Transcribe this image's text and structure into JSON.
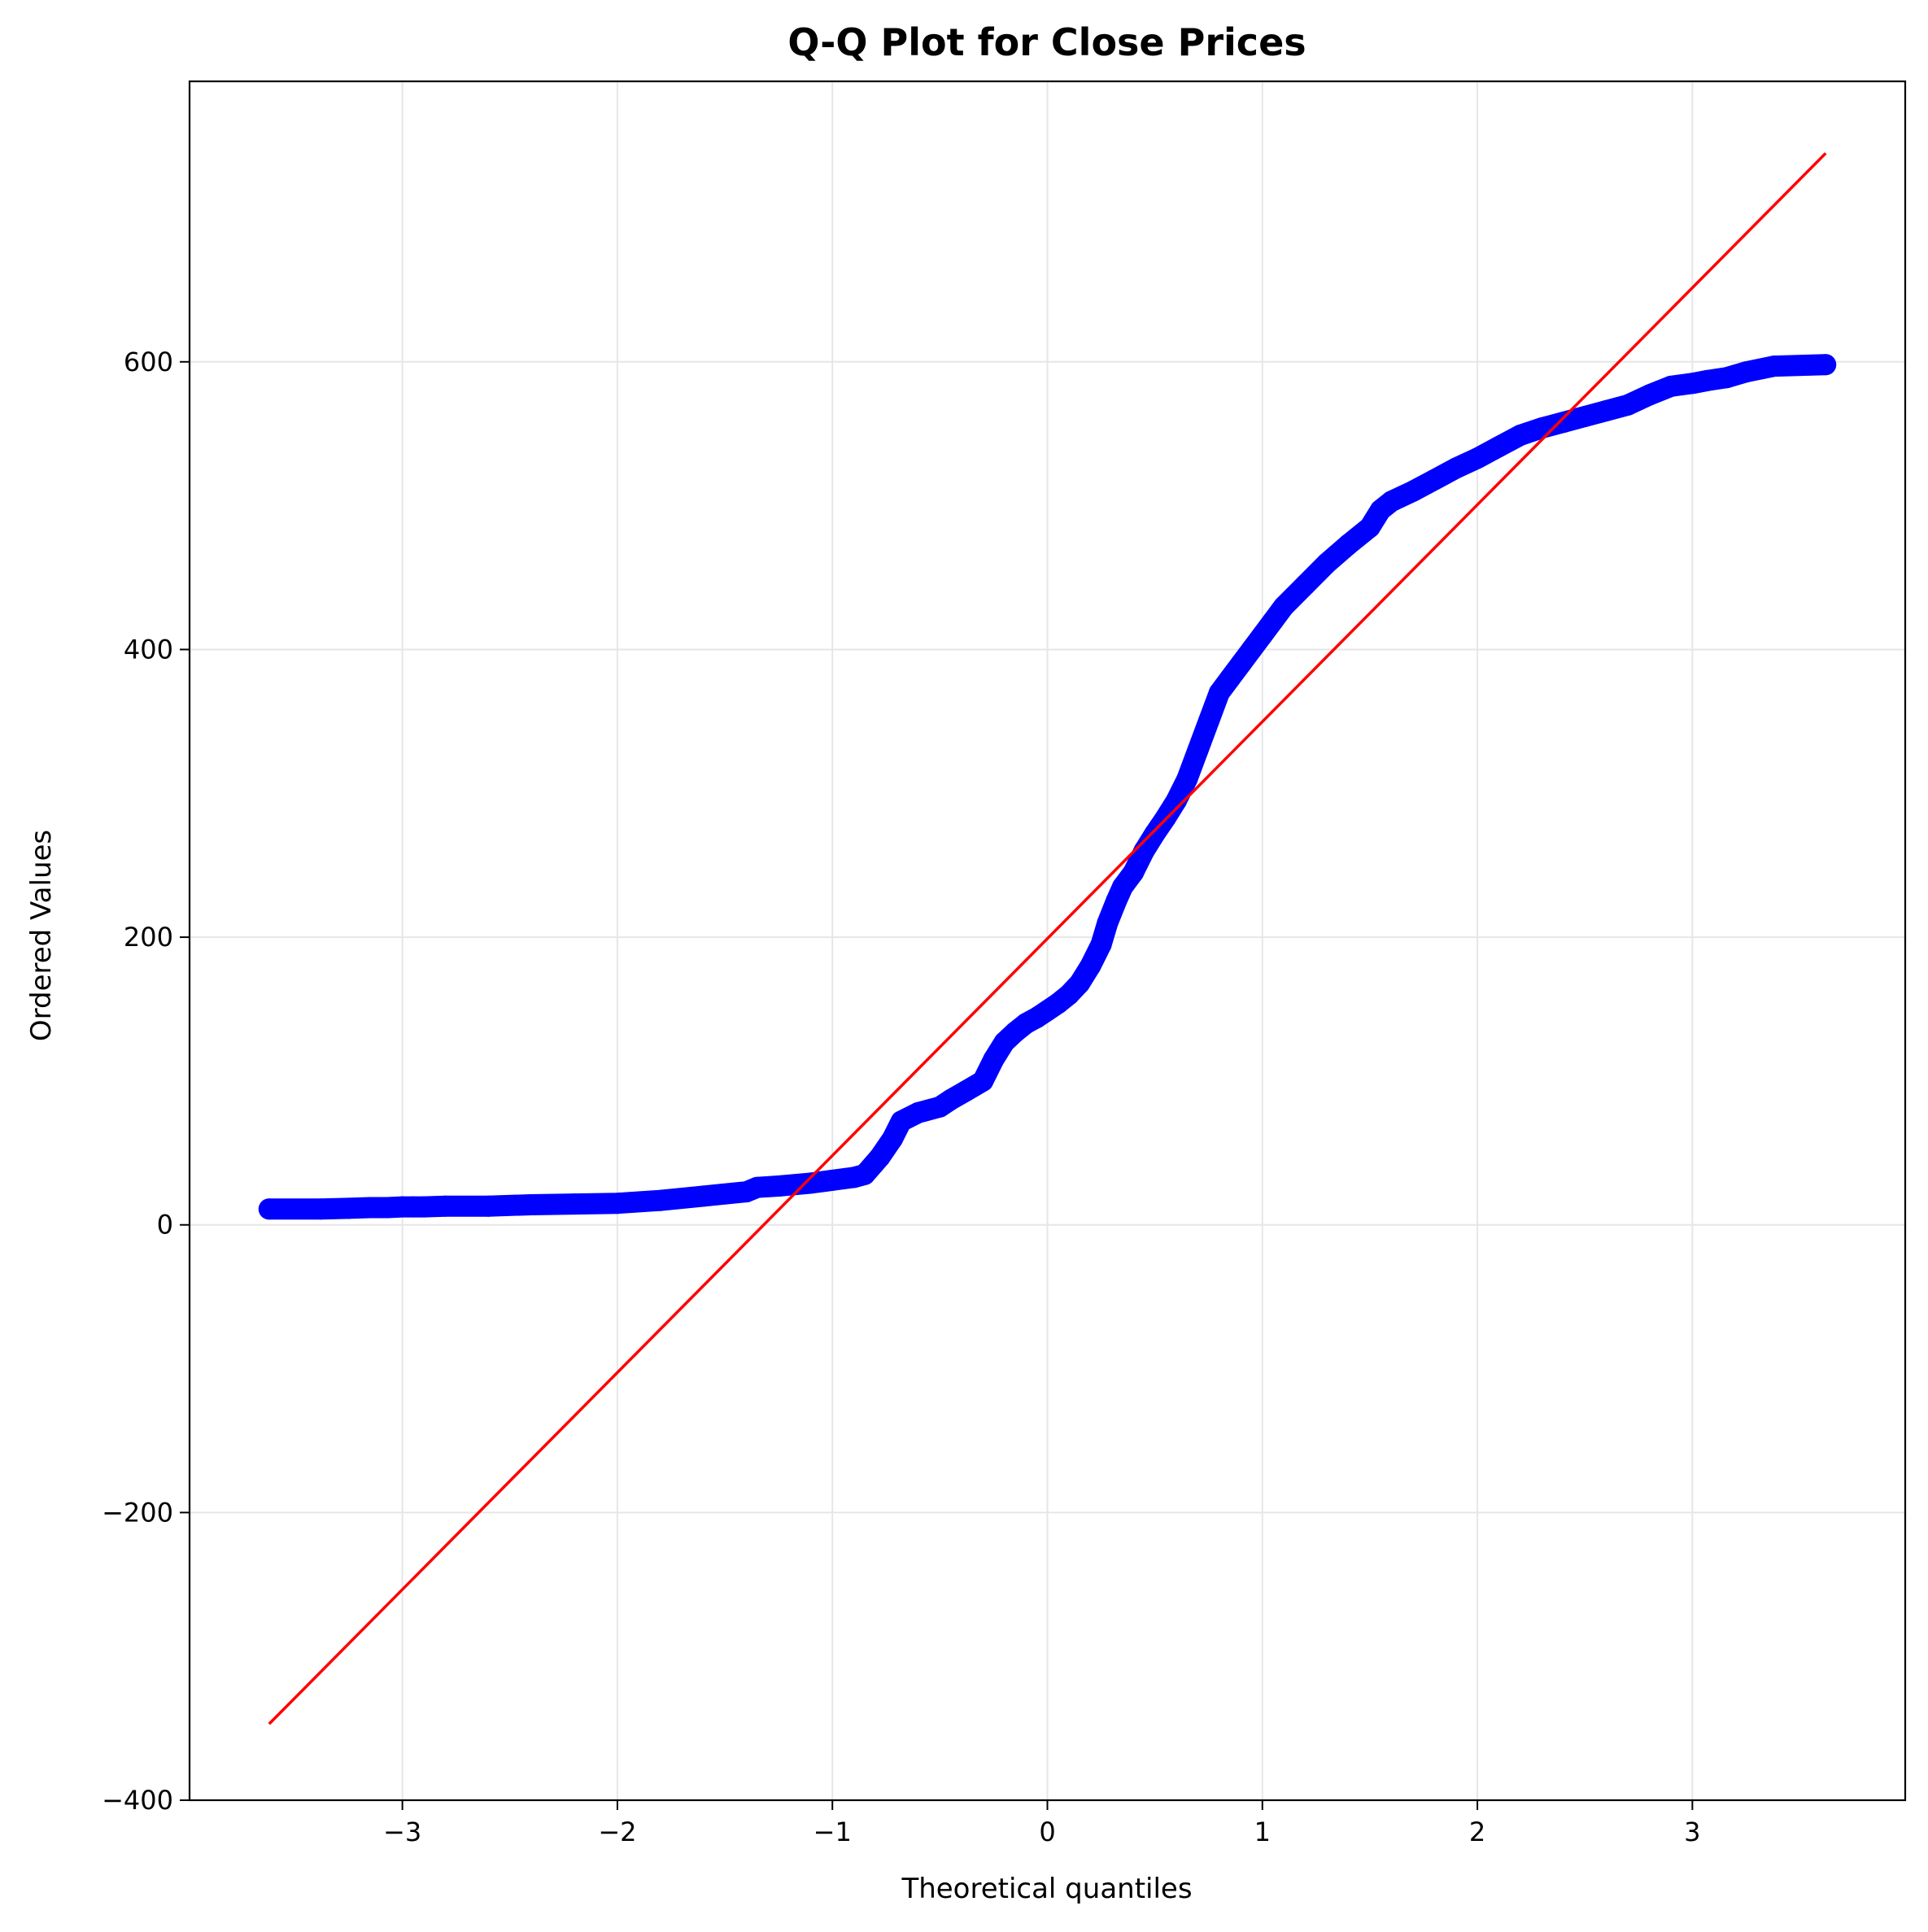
{
  "chart_data": {
    "type": "scatter",
    "title": "Q-Q Plot for Close Prices",
    "xlabel": "Theoretical quantiles",
    "ylabel": "Ordered Values",
    "xlim": [
      -3.99,
      3.99
    ],
    "ylim": [
      -400,
      795
    ],
    "xticks": [
      -3,
      -2,
      -1,
      0,
      1,
      2,
      3
    ],
    "xtick_labels": [
      "−3",
      "−2",
      "−1",
      "0",
      "1",
      "2",
      "3"
    ],
    "yticks": [
      -400,
      -200,
      0,
      200,
      400,
      600
    ],
    "ytick_labels": [
      "−400",
      "−200",
      "0",
      "200",
      "400",
      "600"
    ],
    "grid": true,
    "colors": {
      "points": "#0000ff",
      "fit_line": "#ff0000",
      "grid": "#e6e6e6"
    },
    "fit_line": {
      "x": [
        -3.62,
        3.62
      ],
      "y": [
        -347,
        745
      ]
    },
    "series": [
      {
        "values": [
          [
            -3.62,
            11
          ],
          [
            -3.38,
            11
          ],
          [
            -3.25,
            11.5
          ],
          [
            -3.15,
            12
          ],
          [
            -3.07,
            12
          ],
          [
            -3.0,
            12.5
          ],
          [
            -2.95,
            12.5
          ],
          [
            -2.9,
            12.5
          ],
          [
            -2.8,
            13
          ],
          [
            -2.6,
            13
          ],
          [
            -2.4,
            14
          ],
          [
            -2.2,
            14.5
          ],
          [
            -2.0,
            15
          ],
          [
            -1.8,
            17
          ],
          [
            -1.6,
            20
          ],
          [
            -1.4,
            23
          ],
          [
            -1.35,
            26
          ],
          [
            -1.25,
            27
          ],
          [
            -1.1,
            29
          ],
          [
            -1.0,
            31
          ],
          [
            -0.9,
            33
          ],
          [
            -0.85,
            35
          ],
          [
            -0.78,
            47
          ],
          [
            -0.72,
            60
          ],
          [
            -0.68,
            72
          ],
          [
            -0.6,
            78
          ],
          [
            -0.5,
            82
          ],
          [
            -0.45,
            87
          ],
          [
            -0.38,
            93
          ],
          [
            -0.3,
            100
          ],
          [
            -0.25,
            115
          ],
          [
            -0.2,
            127
          ],
          [
            -0.15,
            134
          ],
          [
            -0.1,
            140
          ],
          [
            -0.05,
            144
          ],
          [
            0.0,
            149
          ],
          [
            0.05,
            154
          ],
          [
            0.1,
            160
          ],
          [
            0.15,
            168
          ],
          [
            0.2,
            180
          ],
          [
            0.25,
            195
          ],
          [
            0.28,
            210
          ],
          [
            0.32,
            225
          ],
          [
            0.35,
            235
          ],
          [
            0.4,
            245
          ],
          [
            0.45,
            260
          ],
          [
            0.5,
            272
          ],
          [
            0.55,
            283
          ],
          [
            0.6,
            295
          ],
          [
            0.65,
            310
          ],
          [
            0.7,
            330
          ],
          [
            0.75,
            350
          ],
          [
            0.8,
            370
          ],
          [
            0.85,
            380
          ],
          [
            0.9,
            390
          ],
          [
            0.95,
            400
          ],
          [
            1.0,
            410
          ],
          [
            1.05,
            420
          ],
          [
            1.1,
            430
          ],
          [
            1.2,
            445
          ],
          [
            1.3,
            460
          ],
          [
            1.4,
            473
          ],
          [
            1.5,
            485
          ],
          [
            1.55,
            497
          ],
          [
            1.6,
            503
          ],
          [
            1.7,
            510
          ],
          [
            1.8,
            518
          ],
          [
            1.9,
            526
          ],
          [
            2.0,
            533
          ],
          [
            2.1,
            541
          ],
          [
            2.2,
            549
          ],
          [
            2.3,
            554
          ],
          [
            2.4,
            558
          ],
          [
            2.5,
            562
          ],
          [
            2.6,
            566
          ],
          [
            2.7,
            570
          ],
          [
            2.8,
            577
          ],
          [
            2.9,
            583
          ],
          [
            3.0,
            585
          ],
          [
            3.07,
            587
          ],
          [
            3.16,
            589
          ],
          [
            3.25,
            593
          ],
          [
            3.38,
            597
          ],
          [
            3.62,
            598
          ]
        ]
      }
    ]
  }
}
